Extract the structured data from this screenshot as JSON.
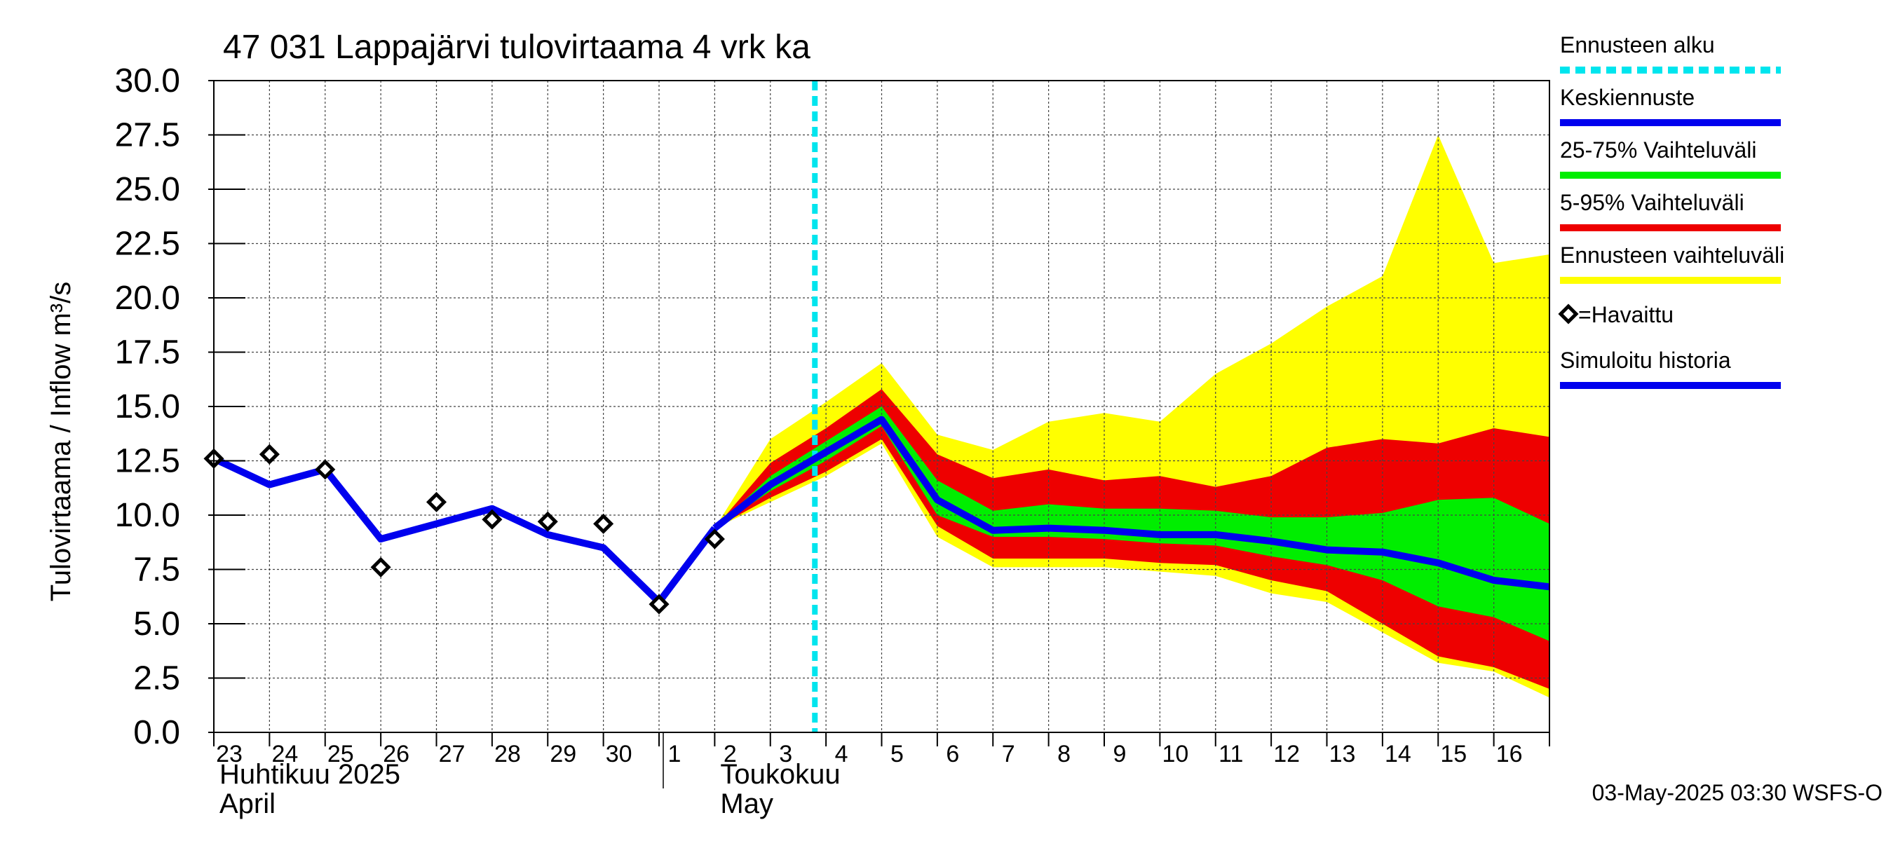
{
  "chart_data": {
    "type": "area",
    "title": "47 031 Lappajärvi tulovirtaama 4 vrk ka",
    "ylabel": "Tulovirtaama / Inflow    m³/s",
    "ylim": [
      0,
      30
    ],
    "yticks": [
      "0.0",
      "2.5",
      "5.0",
      "7.5",
      "10.0",
      "12.5",
      "15.0",
      "17.5",
      "20.0",
      "22.5",
      "25.0",
      "27.5",
      "30.0"
    ],
    "xlim": [
      0,
      24
    ],
    "x_day_labels": [
      "23",
      "24",
      "25",
      "26",
      "27",
      "28",
      "29",
      "30",
      "1",
      "2",
      "3",
      "4",
      "5",
      "6",
      "7",
      "8",
      "9",
      "10",
      "11",
      "12",
      "13",
      "14",
      "15",
      "16"
    ],
    "month_labels": [
      {
        "line1": "Huhtikuu  2025",
        "line2": "April",
        "x": 0
      },
      {
        "line1": "Toukokuu",
        "line2": "May",
        "x": 9
      }
    ],
    "month_divider_x": 8,
    "forecast_start_x": 10.8,
    "grid": true,
    "footer": "03-May-2025 03:30 WSFS-O",
    "legend_position": "right",
    "legend": [
      {
        "label": "Ennusteen alku",
        "color": "#00e5ee",
        "style": "dashed"
      },
      {
        "label": "Keskiennuste",
        "color": "#0000ee",
        "style": "line"
      },
      {
        "label": "25-75% Vaihteluväli",
        "color": "#00ee00",
        "style": "line"
      },
      {
        "label": "5-95% Vaihteluväli",
        "color": "#ee0000",
        "style": "line"
      },
      {
        "label": "Ennusteen vaihteluväli",
        "color": "#ffff00",
        "style": "line"
      },
      {
        "label": "=Havaittu",
        "color": "#000000",
        "style": "marker"
      },
      {
        "label": "Simuloitu historia",
        "color": "#0000ee",
        "style": "line"
      }
    ],
    "colors": {
      "history": "#0000ee",
      "median": "#0000ee",
      "band_25_75": "#00ee00",
      "band_5_95": "#ee0000",
      "band_full": "#ffff00",
      "forecast_start": "#00e5ee",
      "observed": "#000000"
    },
    "simulated_history": {
      "x": [
        0,
        1,
        2,
        3,
        4,
        5,
        6,
        7,
        8,
        9
      ],
      "y": [
        12.6,
        11.4,
        12.1,
        8.9,
        9.6,
        10.3,
        9.1,
        8.5,
        6.0,
        9.4
      ]
    },
    "observed": {
      "x": [
        0,
        1,
        2,
        3,
        4,
        5,
        6,
        7,
        8,
        9
      ],
      "y": [
        12.6,
        12.8,
        12.1,
        7.6,
        10.6,
        9.8,
        9.7,
        9.6,
        5.9,
        8.9
      ]
    },
    "forecast": {
      "x": [
        9,
        10,
        11,
        12,
        13,
        14,
        15,
        16,
        17,
        18,
        19,
        20,
        21,
        22,
        23,
        24
      ],
      "median": [
        9.4,
        11.4,
        12.9,
        14.4,
        10.7,
        9.3,
        9.4,
        9.3,
        9.1,
        9.1,
        8.8,
        8.4,
        8.3,
        7.8,
        7.0,
        6.7
      ],
      "p25": [
        9.4,
        11.1,
        12.5,
        14.1,
        10.0,
        9.0,
        9.0,
        8.9,
        8.7,
        8.6,
        8.1,
        7.7,
        7.0,
        5.8,
        5.3,
        4.2
      ],
      "p75": [
        9.4,
        11.8,
        13.4,
        15.0,
        11.6,
        10.2,
        10.5,
        10.3,
        10.3,
        10.2,
        9.9,
        9.9,
        10.1,
        10.7,
        10.8,
        9.6
      ],
      "p5": [
        9.4,
        10.8,
        12.0,
        13.5,
        9.5,
        8.0,
        8.0,
        8.0,
        7.8,
        7.7,
        7.0,
        6.5,
        5.0,
        3.5,
        3.0,
        2.0
      ],
      "p95": [
        9.4,
        12.4,
        14.0,
        15.8,
        12.8,
        11.7,
        12.1,
        11.6,
        11.8,
        11.3,
        11.8,
        13.1,
        13.5,
        13.3,
        14.0,
        13.6
      ],
      "min": [
        9.4,
        10.6,
        11.8,
        13.3,
        9.0,
        7.6,
        7.6,
        7.6,
        7.4,
        7.2,
        6.4,
        6.0,
        4.6,
        3.2,
        2.8,
        1.6
      ],
      "max": [
        9.4,
        13.5,
        15.2,
        17.0,
        13.7,
        13.0,
        14.3,
        14.7,
        14.3,
        16.5,
        17.9,
        19.6,
        21.0,
        27.5,
        21.6,
        22.0
      ]
    }
  }
}
